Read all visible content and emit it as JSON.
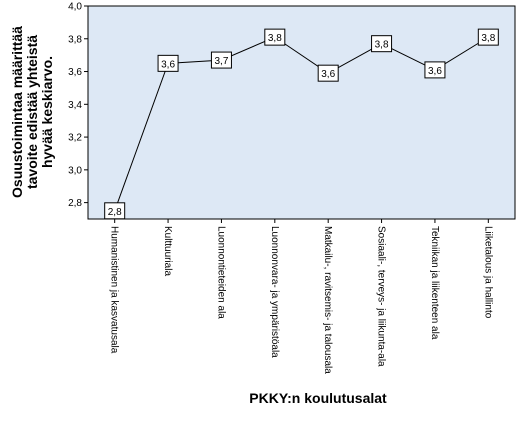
{
  "chart_data": {
    "type": "line",
    "xlabel": "PKKY:n koulutusalat",
    "ylabel_lines": [
      "Osuustoimintaa määrittää",
      "tavoite edistää yhteistä",
      "hyvää keskiarvo."
    ],
    "ylim": [
      2.7,
      4.0
    ],
    "yticks": [
      "2,8",
      "3,0",
      "3,2",
      "3,4",
      "3,6",
      "3,8",
      "4,0"
    ],
    "ytick_values": [
      2.8,
      3.0,
      3.2,
      3.4,
      3.6,
      3.8,
      4.0
    ],
    "categories": [
      "Humanistinen ja kasvatusala",
      "Kulttuuriala",
      "Luonnontieteiden ala",
      "Luonnonvara- ja ympäristöala",
      "Matkailu-, ravitsemis- ja talousala",
      "Sosiaali-, terveys- ja liikunta-ala",
      "Tekniikan ja liikenteen ala",
      "Liiketalous ja hallinto"
    ],
    "series": [
      {
        "values": [
          2.75,
          3.65,
          3.67,
          3.81,
          3.59,
          3.77,
          3.61,
          3.81
        ],
        "data_labels": [
          "2,8",
          "3,6",
          "3,7",
          "3,8",
          "3,6",
          "3,8",
          "3,6",
          "3,8"
        ]
      }
    ],
    "grid": false,
    "legend": "none",
    "colors": {
      "plot_background": "#dde8f5",
      "line": "#000000",
      "marker_fill": "#ffffff"
    }
  }
}
